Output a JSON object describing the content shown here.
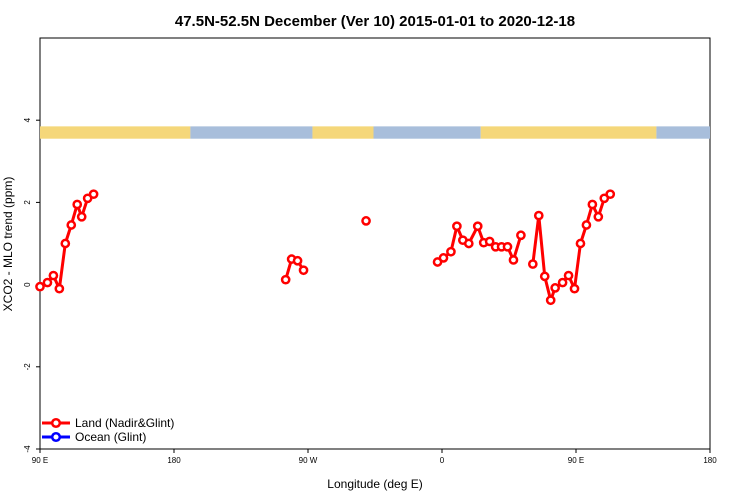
{
  "chart_data": {
    "type": "line",
    "title": "47.5N-52.5N December (Ver 10)   2015-01-01 to 2020-12-18",
    "xlabel": "Longitude (deg E)",
    "ylabel": "XCO2 - MLO trend (ppm)",
    "xlim": [
      90,
      450
    ],
    "ylim": [
      -4,
      6
    ],
    "x_ticks": [
      {
        "value": 90,
        "label": "90 E"
      },
      {
        "value": 180,
        "label": "180"
      },
      {
        "value": 270,
        "label": "90 W"
      },
      {
        "value": 360,
        "label": "0"
      },
      {
        "value": 450,
        "label": "90 E"
      },
      {
        "value": 540,
        "label": "180"
      }
    ],
    "x_tick_note": "axis spans 90E to 180 across a full 450 degrees of longitude; positions computed in script",
    "y_ticks": [
      {
        "value": -4,
        "label": "-4"
      },
      {
        "value": -2,
        "label": "-2"
      },
      {
        "value": 0,
        "label": "0"
      },
      {
        "value": 2,
        "label": "2"
      },
      {
        "value": 4,
        "label": "4"
      }
    ],
    "grid": false,
    "legend_position": "bottom-left",
    "land_ocean_strip": {
      "y_range": [
        3.55,
        3.85
      ],
      "land_color": "#f5d77a",
      "ocean_color": "#a8bedb",
      "segments": [
        {
          "type": "land",
          "from": 90,
          "to": 191
        },
        {
          "type": "ocean",
          "from": 191,
          "to": 273
        },
        {
          "type": "land",
          "from": 273,
          "to": 314
        },
        {
          "type": "ocean",
          "from": 314,
          "to": 386
        },
        {
          "type": "land",
          "from": 386,
          "to": 504
        },
        {
          "type": "ocean",
          "from": 504,
          "to": 540
        }
      ]
    },
    "series": [
      {
        "name": "Land (Nadir&Glint)",
        "color": "#ff0000",
        "segments": [
          [
            [
              90,
              -0.05
            ],
            [
              95,
              0.05
            ],
            [
              99,
              0.22
            ],
            [
              103,
              -0.1
            ],
            [
              107,
              1.0
            ],
            [
              111,
              1.45
            ],
            [
              115,
              1.95
            ],
            [
              118,
              1.65
            ],
            [
              122,
              2.1
            ],
            [
              126,
              2.2
            ]
          ],
          [
            [
              255,
              0.12
            ],
            [
              259,
              0.62
            ],
            [
              263,
              0.58
            ],
            [
              267,
              0.35
            ]
          ],
          [
            [
              309,
              1.55
            ]
          ],
          [
            [
              357,
              0.55
            ],
            [
              361,
              0.65
            ],
            [
              366,
              0.8
            ],
            [
              370,
              1.42
            ],
            [
              374,
              1.08
            ],
            [
              378,
              1.0
            ],
            [
              384,
              1.42
            ],
            [
              388,
              1.02
            ],
            [
              392,
              1.05
            ],
            [
              396,
              0.92
            ],
            [
              400,
              0.92
            ],
            [
              404,
              0.92
            ],
            [
              408,
              0.6
            ],
            [
              413,
              1.2
            ]
          ],
          [
            [
              421,
              0.5
            ],
            [
              425,
              1.68
            ],
            [
              429,
              0.2
            ],
            [
              433,
              -0.38
            ],
            [
              436,
              -0.08
            ],
            [
              441,
              0.05
            ],
            [
              445,
              0.22
            ],
            [
              449,
              -0.1
            ],
            [
              453,
              1.0
            ],
            [
              457,
              1.45
            ],
            [
              461,
              1.95
            ],
            [
              465,
              1.65
            ],
            [
              469,
              2.1
            ],
            [
              473,
              2.2
            ]
          ]
        ]
      },
      {
        "name": "Ocean (Glint)",
        "color": "#0000ff",
        "segments": []
      }
    ]
  }
}
